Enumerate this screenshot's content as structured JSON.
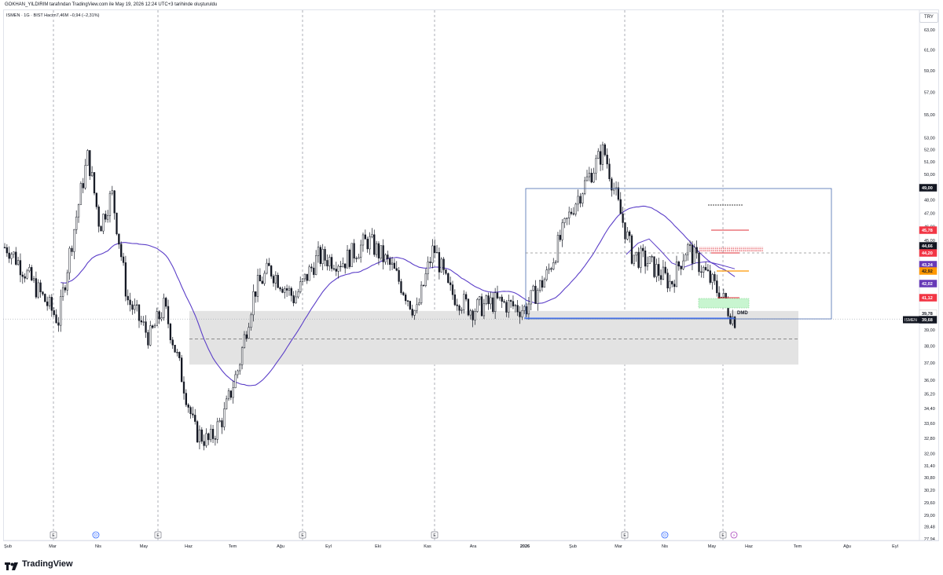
{
  "header": {
    "attribution": "GOKHAN_YILDIRIM tarafından TradingView.com ile May 19, 2026 12:24 UTC+3 tarihinde oluşturuldu"
  },
  "symbol_info": {
    "text": "ISMEN · 1G · BIST  Hacim7,46M  −0,94 (−2,31%)"
  },
  "currency_button": "TRY",
  "footer": {
    "logo_text": "TradingView"
  },
  "colors": {
    "candle": "#131722",
    "moving_average": "#5b3ec8",
    "zone_fill": "#e3e3e3",
    "box_border": "#4a6bb0",
    "support_line": "#2962ff",
    "resistance_red": "#e0303a",
    "orange_level": "#ff9800",
    "green_zone": "#c8f5d0",
    "event_circle_blue": "#2962ff",
    "event_circle_purple": "#ab47bc"
  },
  "chart_data": {
    "type": "candlestick",
    "symbol": "ISMEN",
    "timeframe": "1G",
    "exchange": "BIST",
    "volume": "7,46M",
    "change": "−0,94 (−2,31%)",
    "y_axis": {
      "ticks": [
        "63,00",
        "61,00",
        "59,00",
        "57,00",
        "55,00",
        "53,00",
        "52,00",
        "51,00",
        "50,00",
        "48,00",
        "47,00",
        "46,00",
        "45,00",
        "44,00",
        "43,00",
        "42,00",
        "41,00",
        "40,00",
        "39,00",
        "38,00",
        "37,00",
        "36,00",
        "35,20",
        "34,40",
        "33,60",
        "32,80",
        "32,00",
        "31,40",
        "30,80",
        "30,20",
        "29,60",
        "29,00",
        "28,48",
        "27,94"
      ],
      "scale": "log",
      "range": [
        27.94,
        63.0
      ]
    },
    "x_axis": {
      "ticks": [
        "Şub",
        "Mar",
        "Nis",
        "May",
        "Haz",
        "Tem",
        "Ağu",
        "Eyl",
        "Eki",
        "Kas",
        "Ara",
        "2026",
        "Şub",
        "Mar",
        "Nis",
        "May",
        "Haz",
        "Tem",
        "Ağu",
        "Eyl"
      ]
    },
    "price_labels": [
      {
        "value": "49,00",
        "style": "dark"
      },
      {
        "value": "45,78",
        "style": "red"
      },
      {
        "value": "44,66",
        "style": "dark"
      },
      {
        "value": "44,20",
        "style": "red"
      },
      {
        "value": "43,24",
        "style": "purple"
      },
      {
        "value": "42,92",
        "style": "orange"
      },
      {
        "value": "42,02",
        "style": "purple"
      },
      {
        "value": "41,12",
        "style": "red"
      },
      {
        "value": "39,78",
        "style": "white"
      },
      {
        "value": "39,68",
        "style": "dark",
        "prefix": "ISMEN"
      }
    ],
    "annotations": [
      "DMD"
    ],
    "event_markers": [
      "E",
      "D",
      "E",
      "E",
      "E",
      "E",
      "D",
      "E",
      "⚡"
    ],
    "trend": [
      {
        "date": "2025-02",
        "price": 44.5
      },
      {
        "date": "2025-02-20",
        "price": 41.5
      },
      {
        "date": "2025-03-05",
        "price": 39.6
      },
      {
        "date": "2025-03-15",
        "price": 45.5
      },
      {
        "date": "2025-03-25",
        "price": 51.5
      },
      {
        "date": "2025-04-02",
        "price": 46.0
      },
      {
        "date": "2025-04-10",
        "price": 48.5
      },
      {
        "date": "2025-04-20",
        "price": 41.0
      },
      {
        "date": "2025-05-05",
        "price": 38.5
      },
      {
        "date": "2025-05-15",
        "price": 40.5
      },
      {
        "date": "2025-05-25",
        "price": 37.0
      },
      {
        "date": "2025-06-05",
        "price": 33.2
      },
      {
        "date": "2025-06-15",
        "price": 32.6
      },
      {
        "date": "2025-06-25",
        "price": 34.0
      },
      {
        "date": "2025-07-05",
        "price": 36.8
      },
      {
        "date": "2025-07-15",
        "price": 41.5
      },
      {
        "date": "2025-07-25",
        "price": 43.0
      },
      {
        "date": "2025-08-10",
        "price": 41.0
      },
      {
        "date": "2025-08-25",
        "price": 43.8
      },
      {
        "date": "2025-09-10",
        "price": 43.5
      },
      {
        "date": "2025-09-25",
        "price": 45.0
      },
      {
        "date": "2025-10-10",
        "price": 43.0
      },
      {
        "date": "2025-10-25",
        "price": 40.0
      },
      {
        "date": "2025-11-05",
        "price": 44.5
      },
      {
        "date": "2025-11-15",
        "price": 41.5
      },
      {
        "date": "2025-11-30",
        "price": 40.3
      },
      {
        "date": "2025-12-15",
        "price": 40.8
      },
      {
        "date": "2026-01-01",
        "price": 40.3
      },
      {
        "date": "2026-01-15",
        "price": 42.5
      },
      {
        "date": "2026-02-01",
        "price": 47.5
      },
      {
        "date": "2026-02-20",
        "price": 52.0
      },
      {
        "date": "2026-03-01",
        "price": 47.5
      },
      {
        "date": "2026-03-10",
        "price": 44.0
      },
      {
        "date": "2026-03-20",
        "price": 43.5
      },
      {
        "date": "2026-04-05",
        "price": 42.0
      },
      {
        "date": "2026-04-15",
        "price": 44.5
      },
      {
        "date": "2026-04-25",
        "price": 43.0
      },
      {
        "date": "2026-05-10",
        "price": 41.0
      },
      {
        "date": "2026-05-19",
        "price": 39.68
      }
    ]
  }
}
